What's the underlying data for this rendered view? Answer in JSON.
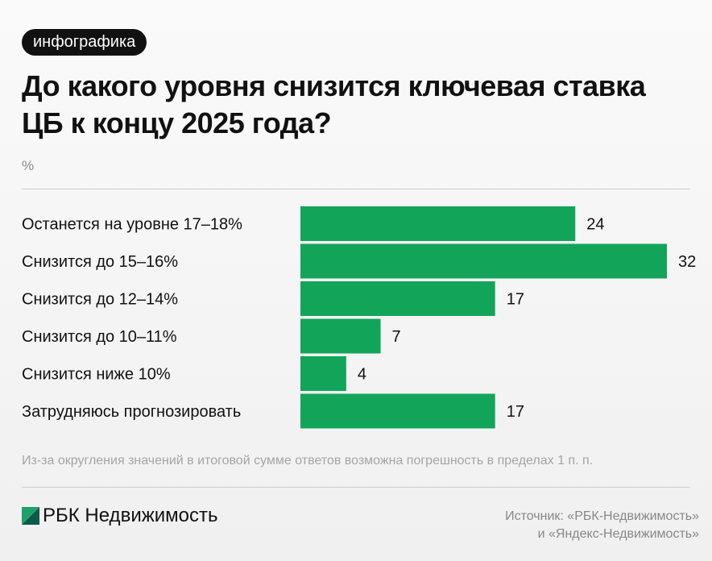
{
  "tag": "инфографика",
  "title": "До какого уровня снизится ключевая ставка ЦБ к концу 2025 года?",
  "unit": "%",
  "note": "Из-за округления значений в итоговой сумме ответов возможна погрешность в пределах 1 п. п.",
  "logo": "РБК Недвижимость",
  "source_line1": "Источник: «РБК-Недвижимость»",
  "source_line2": "и «Яндекс-Недвижимость»",
  "colors": {
    "bar": "#12a55a",
    "logo_green": "#1fa06a",
    "logo_dark": "#0c5a4a"
  },
  "chart_data": {
    "type": "bar",
    "orientation": "horizontal",
    "title": "До какого уровня снизится ключевая ставка ЦБ к концу 2025 года?",
    "ylabel": "%",
    "categories": [
      "Останется на уровне 17–18%",
      "Снизится до 15–16%",
      "Снизится до 12–14%",
      "Снизится до 10–11%",
      "Снизится ниже 10%",
      "Затрудняюсь прогнозировать"
    ],
    "values": [
      24,
      32,
      17,
      7,
      4,
      17
    ],
    "xlim": [
      0,
      32
    ]
  }
}
